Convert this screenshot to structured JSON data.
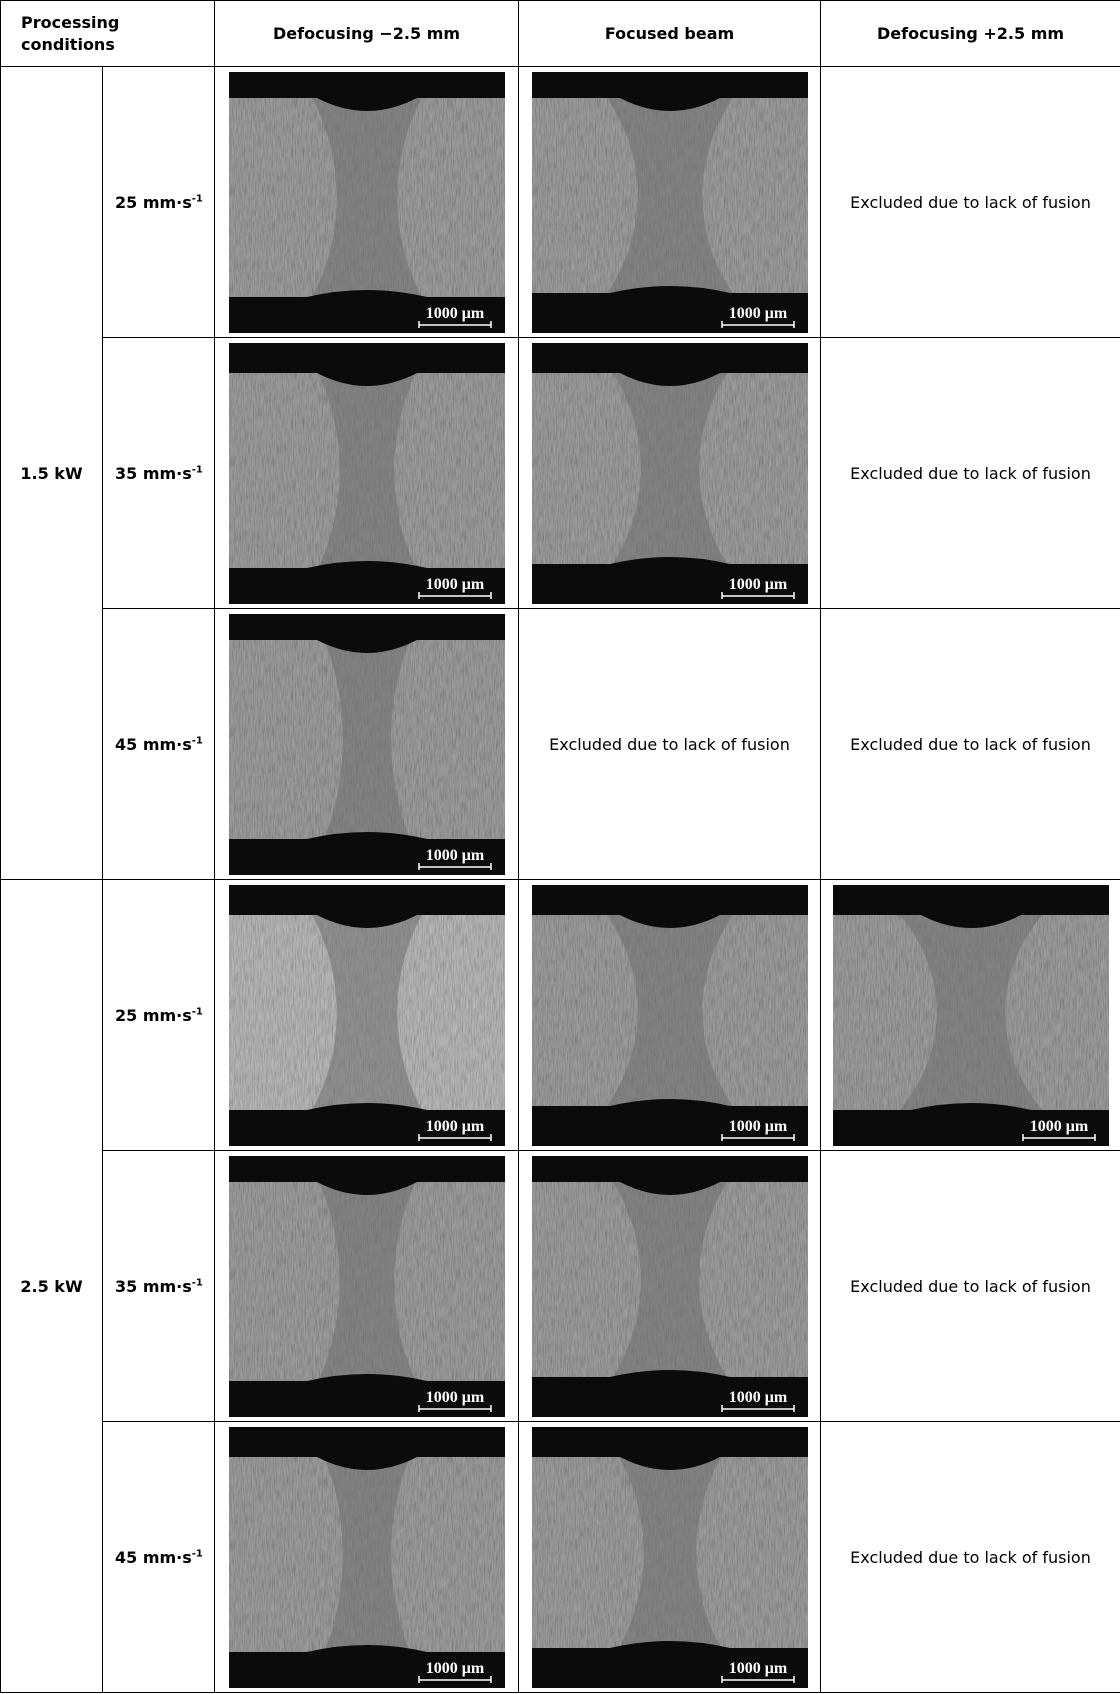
{
  "header": {
    "conditions": "Processing conditions",
    "columns": [
      "Defocusing −2.5 mm",
      "Focused beam",
      "Defocusing +2.5 mm"
    ]
  },
  "groups": [
    {
      "power": "1.5 kW",
      "rows": [
        {
          "speed": "25 mm·s",
          "speed_exponent": "-1",
          "cells": [
            {
              "scale_bar": "1000 μm"
            },
            {
              "scale_bar": "1000 μm"
            },
            {
              "text": "Excluded due to lack of fusion"
            }
          ]
        },
        {
          "speed": "35 mm·s",
          "speed_exponent": "-1",
          "cells": [
            {
              "scale_bar": "1000 μm"
            },
            {
              "scale_bar": "1000 μm"
            },
            {
              "text": "Excluded due to lack of fusion"
            }
          ]
        },
        {
          "speed": "45 mm·s",
          "speed_exponent": "-1",
          "cells": [
            {
              "scale_bar": "1000 μm"
            },
            {
              "text": "Excluded due to lack of fusion"
            },
            {
              "text": "Excluded due to lack of fusion"
            }
          ]
        }
      ]
    },
    {
      "power": "2.5 kW",
      "rows": [
        {
          "speed": "25 mm·s",
          "speed_exponent": "-1",
          "cells": [
            {
              "scale_bar": "1000 μm"
            },
            {
              "scale_bar": "1000 μm"
            },
            {
              "scale_bar": "1000 μm"
            }
          ]
        },
        {
          "speed": "35 mm·s",
          "speed_exponent": "-1",
          "cells": [
            {
              "scale_bar": "1000 μm"
            },
            {
              "scale_bar": "1000 μm"
            },
            {
              "text": "Excluded due to lack of fusion"
            }
          ]
        },
        {
          "speed": "45 mm·s",
          "speed_exponent": "-1",
          "cells": [
            {
              "scale_bar": "1000 μm"
            },
            {
              "scale_bar": "1000 μm"
            },
            {
              "text": "Excluded due to lack of fusion"
            }
          ]
        }
      ]
    }
  ]
}
